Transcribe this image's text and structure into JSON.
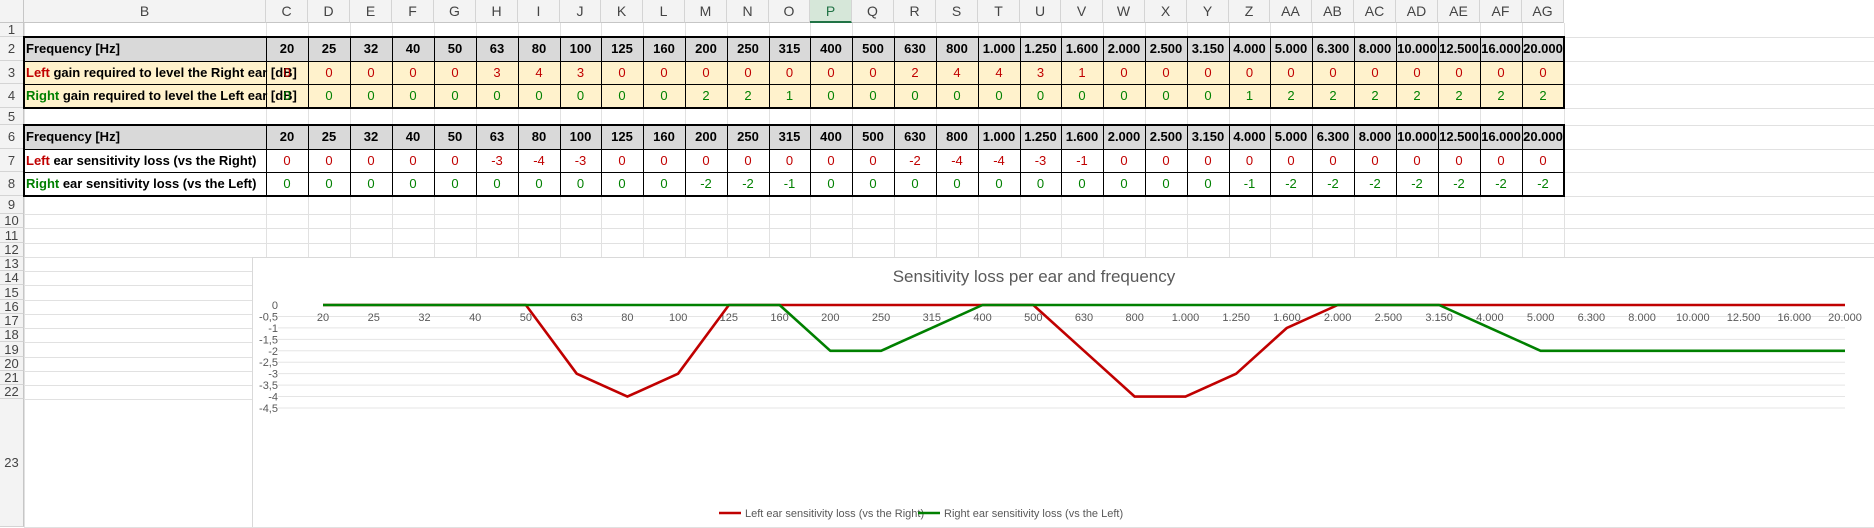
{
  "sheet": {
    "columns": [
      "B",
      "C",
      "D",
      "E",
      "F",
      "G",
      "H",
      "I",
      "J",
      "K",
      "L",
      "M",
      "N",
      "O",
      "P",
      "Q",
      "R",
      "S",
      "T",
      "U",
      "V",
      "W",
      "X",
      "Y",
      "Z",
      "AA",
      "AB",
      "AC",
      "AD",
      "AE",
      "AF",
      "AG"
    ],
    "active_column": "P",
    "rows": [
      "1",
      "2",
      "3",
      "4",
      "5",
      "6",
      "7",
      "8",
      "9",
      "10",
      "11",
      "12",
      "13",
      "14",
      "15",
      "16",
      "17",
      "18",
      "19",
      "20",
      "21",
      "22",
      "23"
    ]
  },
  "table1": {
    "freq_label": "Frequency [Hz]",
    "left_label_colored": "Left",
    "left_label_rest": " gain required to level the Right ear [dB]",
    "right_label_colored": "Right",
    "right_label_rest": " gain required to level the Left ear [dB]",
    "freqs": [
      "20",
      "25",
      "32",
      "40",
      "50",
      "63",
      "80",
      "100",
      "125",
      "160",
      "200",
      "250",
      "315",
      "400",
      "500",
      "630",
      "800",
      "1.000",
      "1.250",
      "1.600",
      "2.000",
      "2.500",
      "3.150",
      "4.000",
      "5.000",
      "6.300",
      "8.000",
      "10.000",
      "12.500",
      "16.000",
      "20.000"
    ],
    "left_values": [
      "0",
      "0",
      "0",
      "0",
      "0",
      "3",
      "4",
      "3",
      "0",
      "0",
      "0",
      "0",
      "0",
      "0",
      "0",
      "2",
      "4",
      "4",
      "3",
      "1",
      "0",
      "0",
      "0",
      "0",
      "0",
      "0",
      "0",
      "0",
      "0",
      "0",
      "0"
    ],
    "right_values": [
      "0",
      "0",
      "0",
      "0",
      "0",
      "0",
      "0",
      "0",
      "0",
      "0",
      "2",
      "2",
      "1",
      "0",
      "0",
      "0",
      "0",
      "0",
      "0",
      "0",
      "0",
      "0",
      "0",
      "1",
      "2",
      "2",
      "2",
      "2",
      "2",
      "2",
      "2"
    ]
  },
  "table2": {
    "freq_label": "Frequency [Hz]",
    "left_label_colored": "Left",
    "left_label_rest": " ear sensitivity loss (vs the Right)",
    "right_label_colored": "Right",
    "right_label_rest": " ear sensitivity loss (vs the Left)",
    "freqs": [
      "20",
      "25",
      "32",
      "40",
      "50",
      "63",
      "80",
      "100",
      "125",
      "160",
      "200",
      "250",
      "315",
      "400",
      "500",
      "630",
      "800",
      "1.000",
      "1.250",
      "1.600",
      "2.000",
      "2.500",
      "3.150",
      "4.000",
      "5.000",
      "6.300",
      "8.000",
      "10.000",
      "12.500",
      "16.000",
      "20.000"
    ],
    "left_values": [
      "0",
      "0",
      "0",
      "0",
      "0",
      "-3",
      "-4",
      "-3",
      "0",
      "0",
      "0",
      "0",
      "0",
      "0",
      "0",
      "-2",
      "-4",
      "-4",
      "-3",
      "-1",
      "0",
      "0",
      "0",
      "0",
      "0",
      "0",
      "0",
      "0",
      "0",
      "0",
      "0"
    ],
    "right_values": [
      "0",
      "0",
      "0",
      "0",
      "0",
      "0",
      "0",
      "0",
      "0",
      "0",
      "-2",
      "-2",
      "-1",
      "0",
      "0",
      "0",
      "0",
      "0",
      "0",
      "0",
      "0",
      "0",
      "0",
      "-1",
      "-2",
      "-2",
      "-2",
      "-2",
      "-2",
      "-2",
      "-2"
    ]
  },
  "colors": {
    "left": "#c00000",
    "right": "#008000",
    "header_fill": "#d9d9d9",
    "value_fill": "#fff2cc"
  },
  "chart_data": {
    "type": "line",
    "title": "Sensitivity loss per ear and frequency",
    "categories": [
      "20",
      "25",
      "32",
      "40",
      "50",
      "63",
      "80",
      "100",
      "125",
      "160",
      "200",
      "250",
      "315",
      "400",
      "500",
      "630",
      "800",
      "1.000",
      "1.250",
      "1.600",
      "2.000",
      "2.500",
      "3.150",
      "4.000",
      "5.000",
      "6.300",
      "8.000",
      "10.000",
      "12.500",
      "16.000",
      "20.000"
    ],
    "y_ticks": [
      "0",
      "-0,5",
      "-1",
      "-1,5",
      "-2",
      "-2,5",
      "-3",
      "-3,5",
      "-4",
      "-4,5"
    ],
    "ylim": [
      -4.5,
      0
    ],
    "grid": true,
    "legend_position": "bottom",
    "series": [
      {
        "name": "Left ear sensitivity loss (vs the Right)",
        "color": "#c00000",
        "values": [
          0,
          0,
          0,
          0,
          0,
          -3,
          -4,
          -3,
          0,
          0,
          0,
          0,
          0,
          0,
          0,
          -2,
          -4,
          -4,
          -3,
          -1,
          0,
          0,
          0,
          0,
          0,
          0,
          0,
          0,
          0,
          0,
          0
        ]
      },
      {
        "name": "Right ear sensitivity loss (vs the Left)",
        "color": "#008000",
        "values": [
          0,
          0,
          0,
          0,
          0,
          0,
          0,
          0,
          0,
          0,
          -2,
          -2,
          -1,
          0,
          0,
          0,
          0,
          0,
          0,
          0,
          0,
          0,
          0,
          -1,
          -2,
          -2,
          -2,
          -2,
          -2,
          -2,
          -2
        ]
      }
    ]
  }
}
